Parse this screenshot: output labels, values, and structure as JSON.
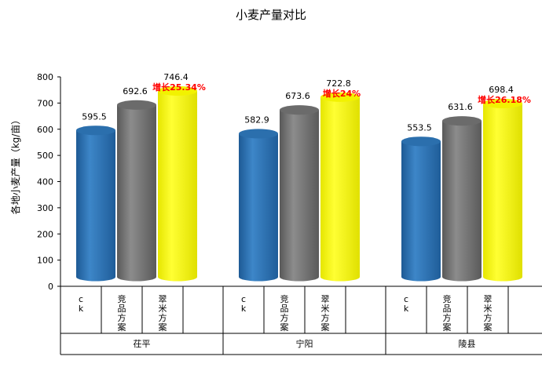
{
  "chart_data": {
    "type": "bar",
    "title": "小麦产量对比",
    "ylabel": "各地小麦产量（kg/亩）",
    "xlabel": "",
    "ylim": [
      0,
      800
    ],
    "yticks": [
      0,
      100,
      200,
      300,
      400,
      500,
      600,
      700,
      800
    ],
    "grid": false,
    "legend": "none",
    "groups": [
      {
        "label": "茌平",
        "bars": [
          {
            "category": "ck",
            "value": 595.5,
            "color": "#2e75b6"
          },
          {
            "category": "竞品方案",
            "value": 692.6,
            "color": "#7f7f7f"
          },
          {
            "category": "翠米方案",
            "value": 746.4,
            "color": "#ffff00",
            "annotation": "增长25.34%"
          }
        ]
      },
      {
        "label": "宁阳",
        "bars": [
          {
            "category": "ck",
            "value": 582.9,
            "color": "#2e75b6"
          },
          {
            "category": "竞品方案",
            "value": 673.6,
            "color": "#7f7f7f"
          },
          {
            "category": "翠米方案",
            "value": 722.8,
            "color": "#ffff00",
            "annotation": "增长24%"
          }
        ]
      },
      {
        "label": "陵县",
        "bars": [
          {
            "category": "ck",
            "value": 553.5,
            "color": "#2e75b6"
          },
          {
            "category": "竞品方案",
            "value": 631.6,
            "color": "#7f7f7f"
          },
          {
            "category": "翠米方案",
            "value": 698.4,
            "color": "#ffff00",
            "annotation": "增长26.18%"
          }
        ]
      }
    ],
    "annotation_color": "#ff0000"
  }
}
